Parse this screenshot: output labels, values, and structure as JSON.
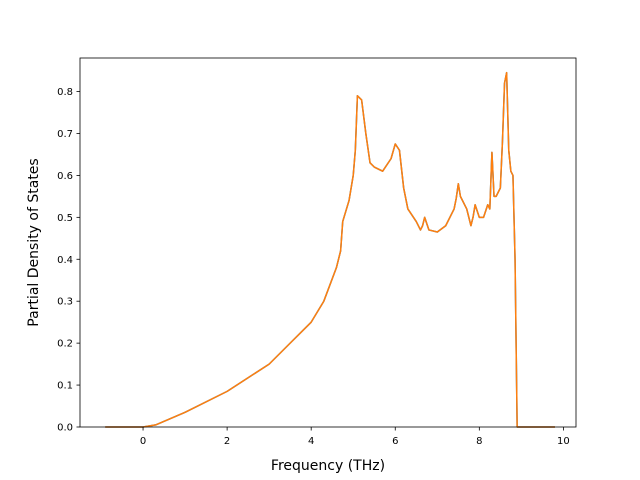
{
  "chart_data": {
    "type": "line",
    "title": "",
    "xlabel": "Frequency (THz)",
    "ylabel": "Partial Density of States",
    "xlim": [
      -1.5,
      10.3
    ],
    "ylim": [
      0.0,
      0.88
    ],
    "xticks": [
      0,
      2,
      4,
      6,
      8,
      10
    ],
    "yticks": [
      0.0,
      0.1,
      0.2,
      0.3,
      0.4,
      0.5,
      0.6,
      0.7,
      0.8
    ],
    "xtick_labels": [
      "0",
      "2",
      "4",
      "6",
      "8",
      "10"
    ],
    "ytick_labels": [
      "0.0",
      "0.1",
      "0.2",
      "0.3",
      "0.4",
      "0.5",
      "0.6",
      "0.7",
      "0.8"
    ],
    "grid": false,
    "series": [
      {
        "color": "#1f77b4",
        "x": [
          -0.9,
          0.0,
          0.3,
          1.0,
          2.0,
          3.0,
          3.5,
          3.8,
          4.0,
          4.3,
          4.6,
          4.7,
          4.75,
          4.9,
          5.0,
          5.05,
          5.1,
          5.2,
          5.3,
          5.4,
          5.5,
          5.7,
          5.9,
          6.0,
          6.1,
          6.2,
          6.3,
          6.5,
          6.6,
          6.65,
          6.7,
          6.8,
          7.0,
          7.2,
          7.4,
          7.45,
          7.5,
          7.55,
          7.7,
          7.8,
          7.85,
          7.9,
          8.0,
          8.1,
          8.2,
          8.25,
          8.3,
          8.35,
          8.4,
          8.5,
          8.55,
          8.6,
          8.65,
          8.7,
          8.75,
          8.8,
          8.85,
          8.9,
          9.0,
          9.8
        ],
        "y": [
          0.0,
          0.0,
          0.005,
          0.035,
          0.085,
          0.15,
          0.2,
          0.23,
          0.25,
          0.3,
          0.38,
          0.42,
          0.49,
          0.54,
          0.6,
          0.66,
          0.79,
          0.78,
          0.7,
          0.63,
          0.62,
          0.61,
          0.64,
          0.675,
          0.66,
          0.57,
          0.52,
          0.49,
          0.47,
          0.48,
          0.5,
          0.47,
          0.465,
          0.48,
          0.52,
          0.545,
          0.58,
          0.55,
          0.52,
          0.48,
          0.5,
          0.53,
          0.5,
          0.5,
          0.53,
          0.52,
          0.655,
          0.55,
          0.55,
          0.57,
          0.68,
          0.82,
          0.845,
          0.66,
          0.61,
          0.6,
          0.4,
          0.0,
          0.0,
          0.0
        ]
      },
      {
        "color": "#ff7f0e",
        "x": [
          -0.9,
          0.0,
          0.3,
          1.0,
          2.0,
          3.0,
          3.5,
          3.8,
          4.0,
          4.3,
          4.6,
          4.7,
          4.75,
          4.9,
          5.0,
          5.05,
          5.1,
          5.2,
          5.3,
          5.4,
          5.5,
          5.7,
          5.9,
          6.0,
          6.1,
          6.2,
          6.3,
          6.5,
          6.6,
          6.65,
          6.7,
          6.8,
          7.0,
          7.2,
          7.4,
          7.45,
          7.5,
          7.55,
          7.7,
          7.8,
          7.85,
          7.9,
          8.0,
          8.1,
          8.2,
          8.25,
          8.3,
          8.35,
          8.4,
          8.5,
          8.55,
          8.6,
          8.65,
          8.7,
          8.75,
          8.8,
          8.85,
          8.9,
          9.0,
          9.8
        ],
        "y": [
          0.0,
          0.0,
          0.005,
          0.035,
          0.085,
          0.15,
          0.2,
          0.23,
          0.25,
          0.3,
          0.38,
          0.42,
          0.49,
          0.54,
          0.6,
          0.66,
          0.79,
          0.78,
          0.7,
          0.63,
          0.62,
          0.61,
          0.64,
          0.675,
          0.66,
          0.57,
          0.52,
          0.49,
          0.47,
          0.48,
          0.5,
          0.47,
          0.465,
          0.48,
          0.52,
          0.545,
          0.58,
          0.55,
          0.52,
          0.48,
          0.5,
          0.53,
          0.5,
          0.5,
          0.53,
          0.52,
          0.655,
          0.55,
          0.55,
          0.57,
          0.68,
          0.82,
          0.845,
          0.66,
          0.61,
          0.6,
          0.4,
          0.0,
          0.0,
          0.0
        ]
      }
    ]
  }
}
